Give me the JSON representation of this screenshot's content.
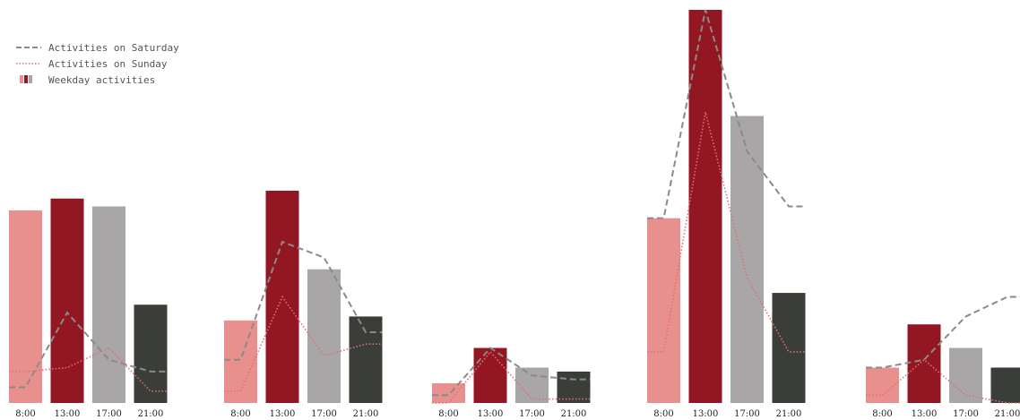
{
  "chart_data": {
    "type": "bar",
    "legend_position": "top-left",
    "grid": false,
    "ylim": [
      0,
      100
    ],
    "categories": [
      "8:00",
      "13:00",
      "17:00",
      "21:00"
    ],
    "bar_colors": [
      "#e8908e",
      "#931723",
      "#a8a6a7",
      "#3b3d39"
    ],
    "saturday_color": "#8a8a8a",
    "sunday_color": "#e07070",
    "legend": [
      {
        "label": "Activities on Saturday",
        "kind": "dashed-line"
      },
      {
        "label": "Activities on Sunday",
        "kind": "dotted-line"
      },
      {
        "label": "Weekday activities",
        "kind": "bars"
      }
    ],
    "groups": [
      {
        "weekday": [
          49,
          52,
          50,
          25
        ],
        "saturday": [
          4,
          23,
          11,
          8
        ],
        "sunday": [
          8,
          9,
          14,
          3
        ]
      },
      {
        "weekday": [
          21,
          54,
          34,
          22
        ],
        "saturday": [
          11,
          41,
          37,
          18
        ],
        "sunday": [
          3,
          27,
          12,
          15
        ]
      },
      {
        "weekday": [
          5,
          14,
          9,
          8
        ],
        "saturday": [
          2,
          14,
          7,
          6
        ],
        "sunday": [
          0,
          13,
          1,
          1
        ]
      },
      {
        "weekday": [
          47,
          100,
          73,
          28
        ],
        "saturday": [
          47,
          100,
          64,
          50
        ],
        "sunday": [
          13,
          74,
          32,
          13
        ]
      },
      {
        "weekday": [
          9,
          20,
          14,
          9
        ],
        "saturday": [
          9,
          11,
          22,
          27
        ],
        "sunday": [
          2,
          11,
          2,
          0
        ]
      }
    ]
  }
}
